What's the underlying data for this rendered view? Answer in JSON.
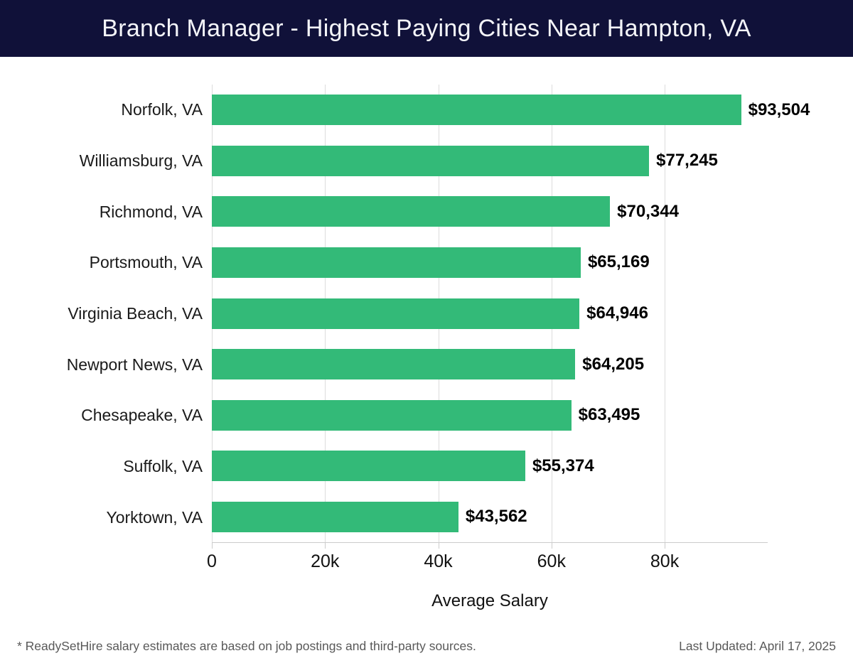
{
  "header": {
    "title": "Branch Manager - Highest Paying Cities Near Hampton, VA"
  },
  "chart_data": {
    "type": "bar",
    "orientation": "horizontal",
    "title": "Branch Manager - Highest Paying Cities Near Hampton, VA",
    "xlabel": "Average Salary",
    "ylabel": "",
    "xlim": [
      0,
      98200
    ],
    "grid": true,
    "legend": false,
    "categories": [
      "Norfolk, VA",
      "Williamsburg, VA",
      "Richmond, VA",
      "Portsmouth, VA",
      "Virginia Beach, VA",
      "Newport News, VA",
      "Chesapeake, VA",
      "Suffolk, VA",
      "Yorktown, VA"
    ],
    "values": [
      93504,
      77245,
      70344,
      65169,
      64946,
      64205,
      63495,
      55374,
      43562
    ],
    "value_labels": [
      "$93,504",
      "$77,245",
      "$70,344",
      "$65,169",
      "$64,946",
      "$64,205",
      "$63,495",
      "$55,374",
      "$43,562"
    ],
    "ticks": [
      {
        "value": 0,
        "label": "0"
      },
      {
        "value": 20000,
        "label": "20k"
      },
      {
        "value": 40000,
        "label": "40k"
      },
      {
        "value": 60000,
        "label": "60k"
      },
      {
        "value": 80000,
        "label": "80k"
      }
    ]
  },
  "colors": {
    "header_bg": "#101139",
    "bar": "#33ba78",
    "gridline": "#dcdcdc",
    "axis_line": "#cccccc"
  },
  "footer": {
    "disclaimer": "* ReadySetHire salary estimates are based on job postings and third-party sources.",
    "last_updated": "Last Updated: April 17, 2025"
  }
}
